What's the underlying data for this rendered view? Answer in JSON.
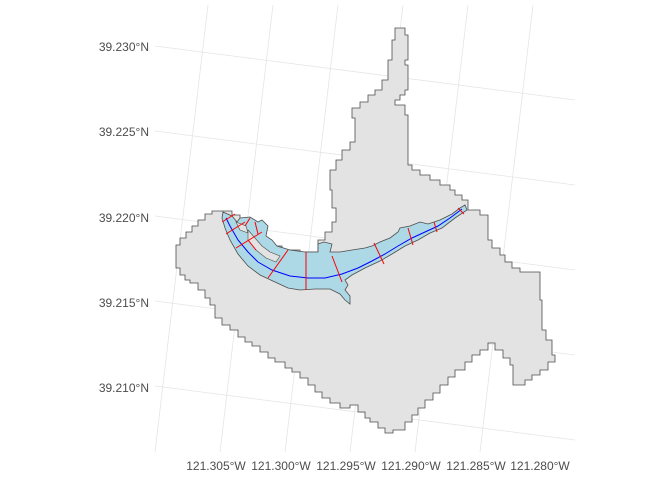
{
  "chart_data": {
    "type": "map",
    "grid": true,
    "y_axis_labels": [
      "39.230°N",
      "39.225°N",
      "39.220°N",
      "39.215°N",
      "39.210°N"
    ],
    "x_axis_labels": [
      "121.305°W",
      "121.300°W",
      "121.295°W",
      "121.290°W",
      "121.285°W",
      "121.280°W"
    ],
    "layers": [
      {
        "name": "watershed",
        "fill": "#e3e3e3",
        "stroke": "#4d4d4d"
      },
      {
        "name": "lake",
        "fill": "#add8e6",
        "stroke": "#4d4d4d"
      },
      {
        "name": "centerline",
        "stroke": "#0000ff"
      },
      {
        "name": "transects",
        "stroke": "#ff0000"
      }
    ]
  }
}
